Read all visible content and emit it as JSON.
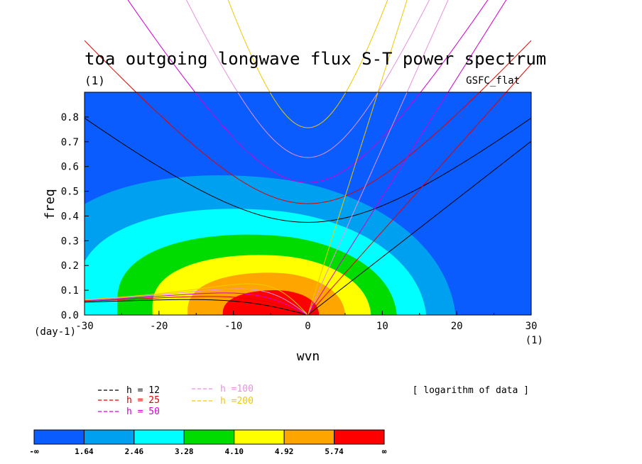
{
  "chart_data": {
    "type": "heatmap",
    "title": "toa outgoing longwave flux S-T power spectrum",
    "subtitle": "(1)",
    "dataset": "GSFC_flat",
    "xlabel": "wvn",
    "ylabel": "freq",
    "x_unit": "(1)",
    "y_unit": "(day-1)",
    "xlim": [
      -30,
      30
    ],
    "ylim": [
      0,
      0.9
    ],
    "x_ticks": [
      "-30",
      "-20",
      "-10",
      "0",
      "10",
      "20",
      "30"
    ],
    "y_ticks": [
      "0.0",
      "0.1",
      "0.2",
      "0.3",
      "0.4",
      "0.5",
      "0.6",
      "0.7",
      "0.8"
    ],
    "grid": false,
    "log_note": "[ logarithm of data ]",
    "colorbar": {
      "labels": [
        "-∞",
        "1.64",
        "2.46",
        "3.28",
        "4.10",
        "4.92",
        "5.74",
        "∞"
      ],
      "colors": [
        "#0a5cff",
        "#00a0f0",
        "#00ffff",
        "#00dc00",
        "#ffff00",
        "#ffa500",
        "#ff0000"
      ]
    },
    "contour_levels": [
      {
        "value": 1.64,
        "a": 24,
        "b": 0.55,
        "color": "#00a0f0"
      },
      {
        "value": 2.46,
        "a": 20,
        "b": 0.42,
        "color": "#00ffff"
      },
      {
        "value": 3.28,
        "a": 16,
        "b": 0.32,
        "color": "#00dc00"
      },
      {
        "value": 4.1,
        "a": 12.5,
        "b": 0.24,
        "color": "#ffff00"
      },
      {
        "value": 4.92,
        "a": 9,
        "b": 0.17,
        "color": "#ffa500"
      },
      {
        "value": 5.74,
        "a": 5.5,
        "b": 0.1,
        "color": "#ff0000"
      }
    ],
    "series": [
      {
        "name": "h = 12",
        "h": 12,
        "color": "#000000"
      },
      {
        "name": "h = 25",
        "h": 25,
        "color": "#e00000"
      },
      {
        "name": "h = 50",
        "h": 50,
        "color": "#d000d0"
      },
      {
        "name": "h =100",
        "h": 100,
        "color": "#e890e0"
      },
      {
        "name": "h =200",
        "h": 200,
        "color": "#f0c800"
      }
    ]
  }
}
